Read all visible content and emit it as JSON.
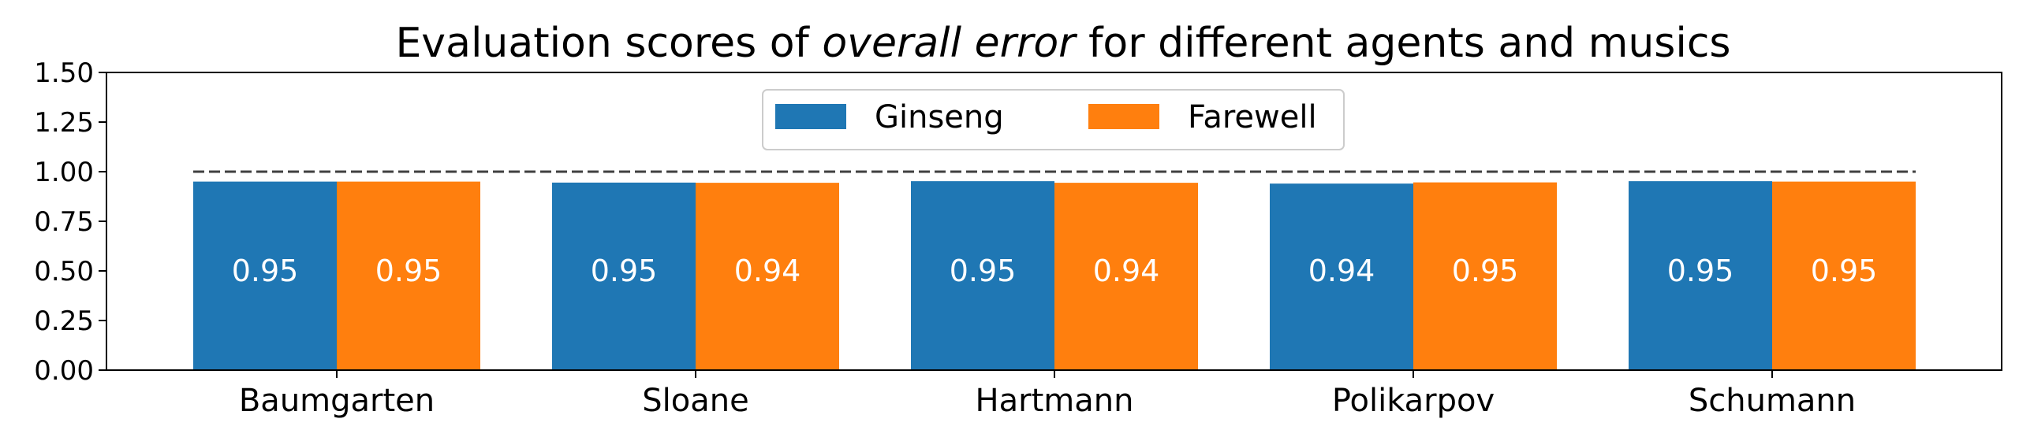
{
  "chart_data": {
    "type": "bar",
    "title_parts": [
      {
        "text": "Evaluation scores of ",
        "italic": false
      },
      {
        "text": "overall error",
        "italic": true
      },
      {
        "text": " for different agents and musics",
        "italic": false
      }
    ],
    "xlabel": "",
    "ylabel": "",
    "categories": [
      "Baumgarten",
      "Sloane",
      "Hartmann",
      "Polikarpov",
      "Schumann"
    ],
    "series": [
      {
        "name": "Ginseng",
        "color": "#1f77b4",
        "values": [
          0.95,
          0.945,
          0.952,
          0.94,
          0.952
        ],
        "labels": [
          "0.95",
          "0.95",
          "0.95",
          "0.94",
          "0.95"
        ]
      },
      {
        "name": "Farewell",
        "color": "#ff7f0e",
        "values": [
          0.95,
          0.944,
          0.944,
          0.946,
          0.95
        ],
        "labels": [
          "0.95",
          "0.94",
          "0.94",
          "0.95",
          "0.95"
        ]
      }
    ],
    "ylim": [
      0,
      1.5
    ],
    "yticks": [
      "0.00",
      "0.25",
      "0.50",
      "0.75",
      "1.00",
      "1.25",
      "1.50"
    ],
    "reference_line": {
      "y": 1.0,
      "style": "dashed",
      "color": "#404040"
    },
    "legend": {
      "placement": "top-center",
      "columns": 2
    },
    "grid": false
  }
}
